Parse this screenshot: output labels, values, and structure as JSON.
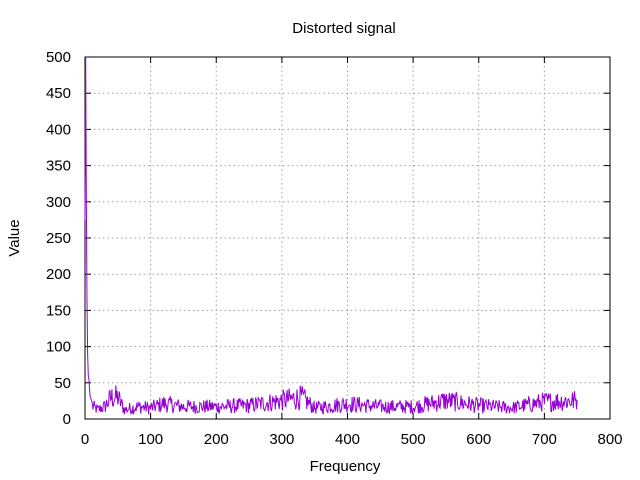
{
  "chart_data": {
    "type": "line",
    "title": "Distorted signal",
    "xlabel": "Frequency",
    "ylabel": "Value",
    "xlim": [
      0,
      800
    ],
    "ylim": [
      0,
      500
    ],
    "xticks": [
      0,
      100,
      200,
      300,
      400,
      500,
      600,
      700,
      800
    ],
    "yticks": [
      0,
      50,
      100,
      150,
      200,
      250,
      300,
      350,
      400,
      450,
      500
    ],
    "grid": true,
    "legend": "none",
    "series": [
      {
        "color": "#9400d3",
        "description_of_shape": "sharp peak near zero frequency then noisy floor",
        "x": [
          0,
          1,
          2,
          3,
          4,
          5,
          6,
          7,
          8,
          9,
          10,
          12,
          15,
          20,
          25,
          30,
          40,
          50,
          60,
          80,
          100,
          120,
          150,
          200,
          250,
          300,
          330,
          350,
          400,
          450,
          500,
          550,
          600,
          650,
          700,
          750
        ],
        "y": [
          275,
          500,
          310,
          170,
          90,
          60,
          55,
          40,
          30,
          28,
          25,
          20,
          18,
          15,
          18,
          20,
          35,
          35,
          15,
          20,
          18,
          25,
          20,
          20,
          22,
          30,
          35,
          18,
          25,
          20,
          20,
          30,
          22,
          18,
          28,
          30
        ]
      }
    ]
  }
}
